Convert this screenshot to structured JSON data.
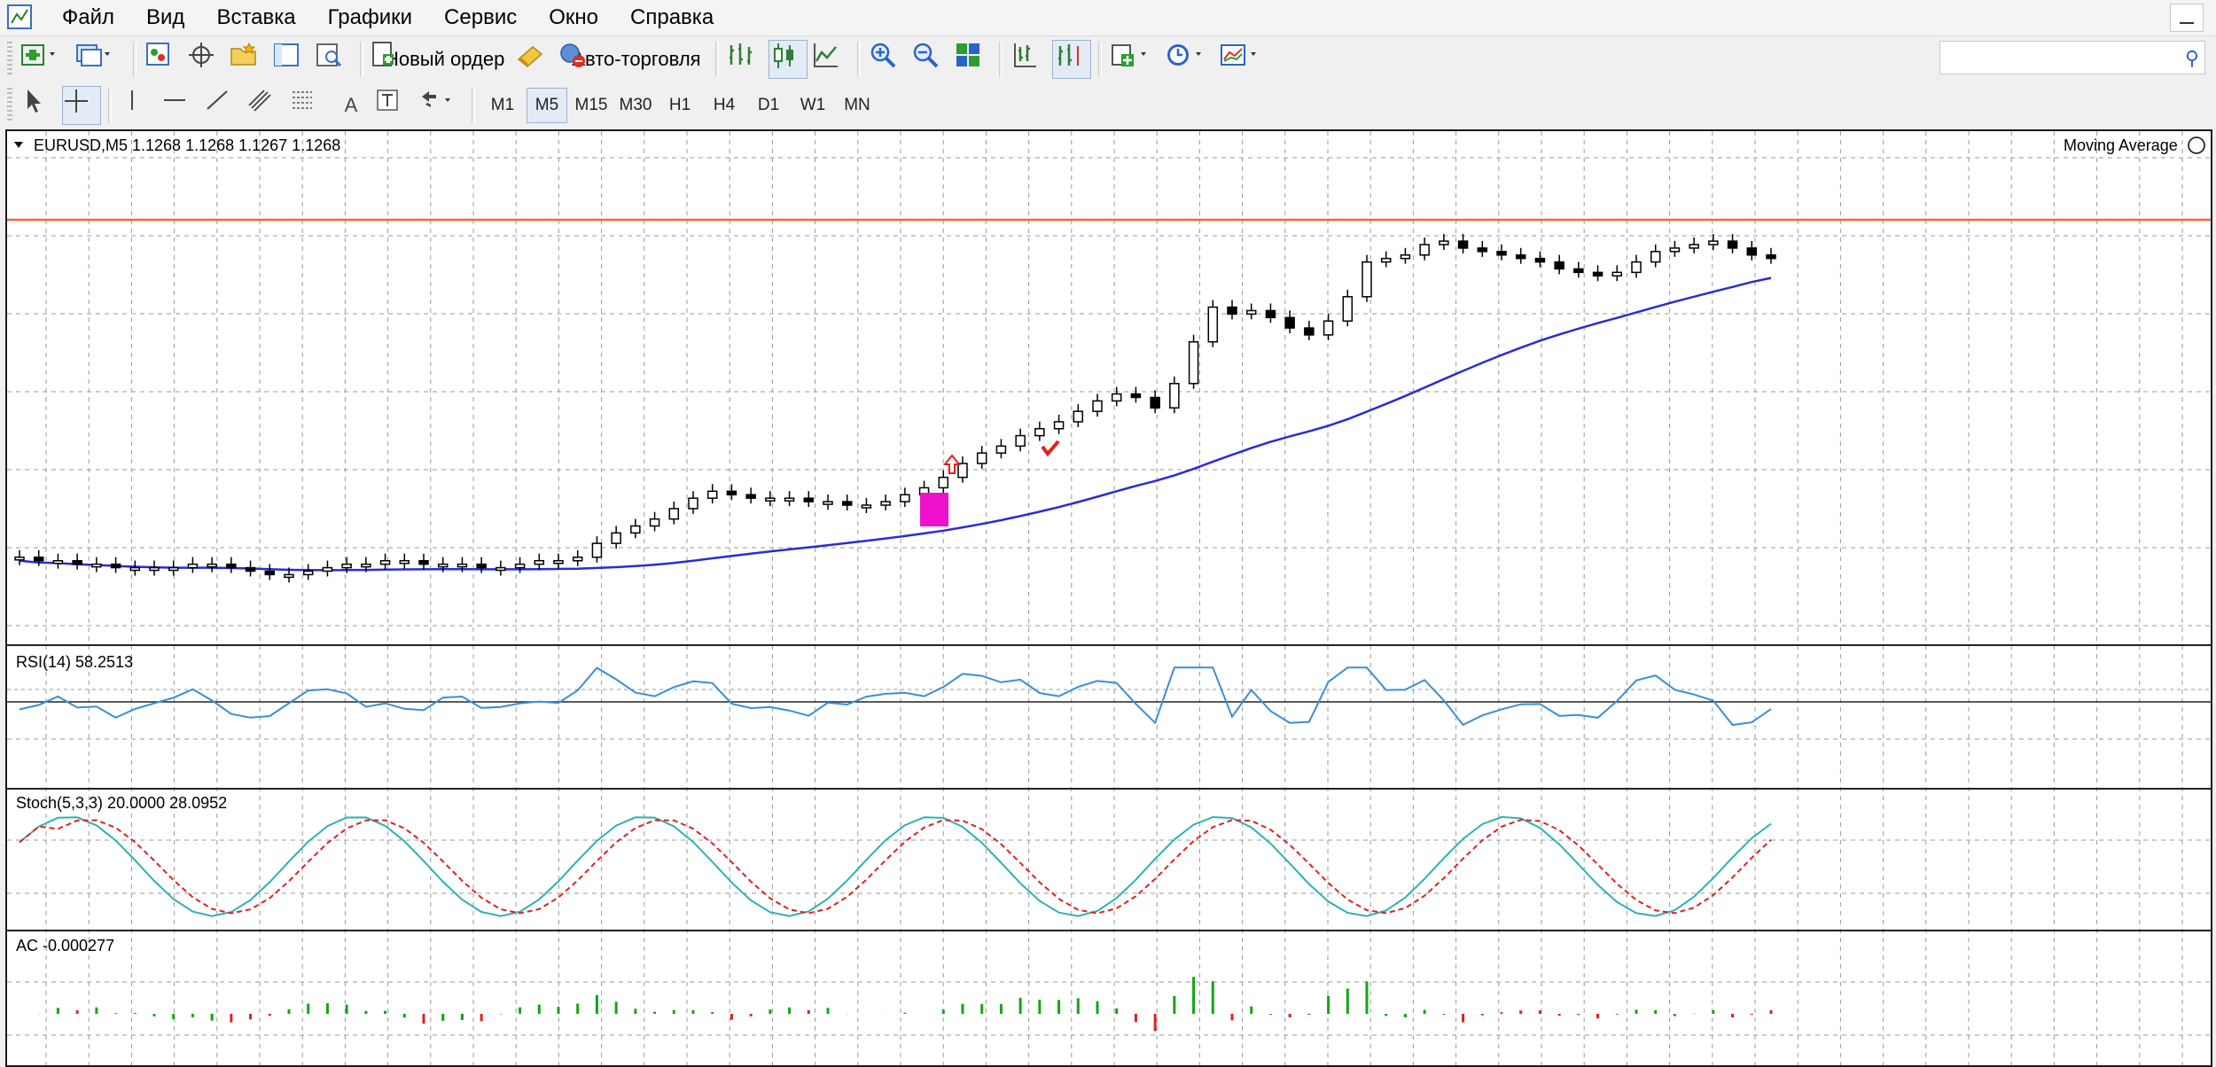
{
  "menu": [
    "Файл",
    "Вид",
    "Вставка",
    "Графики",
    "Сервис",
    "Окно",
    "Справка"
  ],
  "toolbar": {
    "new_order": "Новый ордер",
    "auto_trading": "Авто-торговля"
  },
  "drawing_tools": [
    "A"
  ],
  "timeframes": [
    "M1",
    "M5",
    "M15",
    "M30",
    "H1",
    "H4",
    "D1",
    "W1",
    "MN"
  ],
  "active_timeframe": "M5",
  "chart": {
    "symbol_header": "EURUSD,M5  1.1268 1.1268 1.1267 1.1268",
    "indicator_label": "Moving Average",
    "rsi_label": "RSI(14) 58.2513",
    "stoch_label": "Stoch(5,3,3) 20.0000 28.0952",
    "ac_label": "AC -0.000277",
    "colors": {
      "ma": "#2b2bd6",
      "rsi": "#3a8fd6",
      "stoch_main": "#2cb2b2",
      "stoch_signal": "#e02020",
      "ac_up": "#13a513",
      "ac_down": "#e02020",
      "level": "#ee6a3a",
      "marker": "#ee11cc"
    }
  },
  "chart_data": {
    "type": "line",
    "symbol": "EURUSD",
    "timeframe": "M5",
    "last_quote": {
      "open": 1.1268,
      "high": 1.1268,
      "low": 1.1267,
      "close": 1.1268
    },
    "indicators": {
      "rsi_14_last": 58.2513,
      "stoch_5_3_3_main": 20.0,
      "stoch_5_3_3_signal": 28.0952,
      "ac_last": -0.000277
    },
    "grid": true,
    "candle_close_trend": [
      10,
      9,
      9,
      8,
      8,
      7,
      7,
      7,
      7,
      8,
      8,
      7,
      6,
      5,
      5,
      6,
      7,
      8,
      8,
      9,
      9,
      8,
      8,
      8,
      7,
      7,
      8,
      9,
      9,
      10,
      14,
      17,
      19,
      21,
      24,
      27,
      29,
      28,
      27,
      27,
      27,
      26,
      26,
      25,
      25,
      26,
      28,
      30,
      33,
      37,
      40,
      42,
      45,
      47,
      49,
      52,
      55,
      57,
      56,
      53,
      60,
      72,
      82,
      80,
      81,
      79,
      76,
      74,
      78,
      85,
      95,
      96,
      97,
      100,
      101,
      99,
      98,
      97,
      96,
      95,
      93,
      92,
      91,
      92,
      95,
      98,
      99,
      100,
      101,
      99,
      97,
      96
    ]
  }
}
